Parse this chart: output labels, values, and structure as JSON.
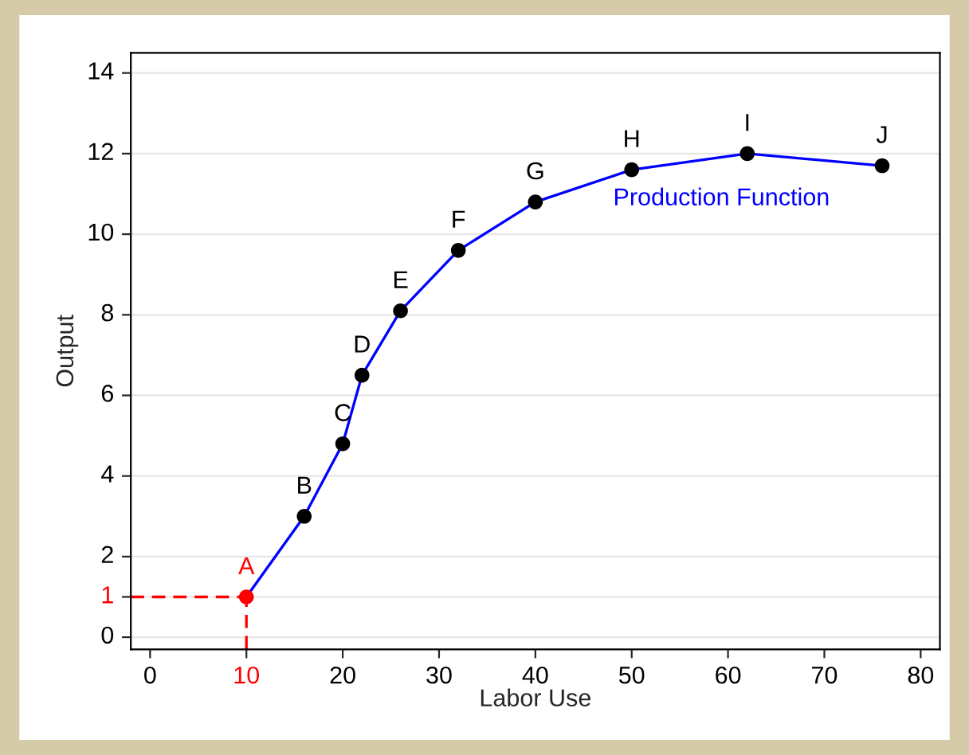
{
  "chart_data": {
    "type": "line",
    "xlabel": "Labor Use",
    "ylabel": "Output",
    "x": [
      10,
      16,
      20,
      22,
      26,
      32,
      40,
      50,
      62,
      76
    ],
    "series": [
      {
        "color": "#0000ff",
        "values": [
          1,
          3,
          4.8,
          6.5,
          8.1,
          9.6,
          10.8,
          11.6,
          12,
          11.7
        ],
        "colors": [
          "#ff0000",
          "#000000",
          "#000000",
          "#000000",
          "#000000",
          "#000000",
          "#000000",
          "#000000",
          "#000000",
          "#000000"
        ]
      }
    ],
    "marker": "circle",
    "line_style": "solid",
    "xlim": [
      -2,
      82
    ],
    "xticks": [
      0,
      10,
      20,
      30,
      40,
      50,
      60,
      70,
      80
    ],
    "ylim": [
      -0.3,
      14.5
    ],
    "yticks": [
      0,
      1,
      2,
      4,
      6,
      8,
      10,
      12,
      14
    ],
    "grid": "y",
    "legend": false,
    "ref_lines": [
      {
        "axis": "y",
        "value": 1,
        "color": "#ff0000",
        "line_style": "dashed"
      },
      {
        "axis": "x",
        "value": 10,
        "color": "#ff0000",
        "line_style": "dashed"
      }
    ],
    "annotations": [
      {
        "text": "A",
        "x": 10,
        "y": 1
      },
      {
        "text": "B",
        "x": 16,
        "y": 3
      },
      {
        "text": "C",
        "x": 20,
        "y": 4.8
      },
      {
        "text": "D",
        "x": 22,
        "y": 6.5
      },
      {
        "text": "E",
        "x": 26,
        "y": 8.1
      },
      {
        "text": "F",
        "x": 32,
        "y": 9.6
      },
      {
        "text": "G",
        "x": 40,
        "y": 10.8
      },
      {
        "text": "H",
        "x": 50,
        "y": 11.6
      },
      {
        "text": "I",
        "x": 62,
        "y": 12
      },
      {
        "text": "J",
        "x": 76,
        "y": 11.7
      },
      "Production Function"
    ]
  }
}
